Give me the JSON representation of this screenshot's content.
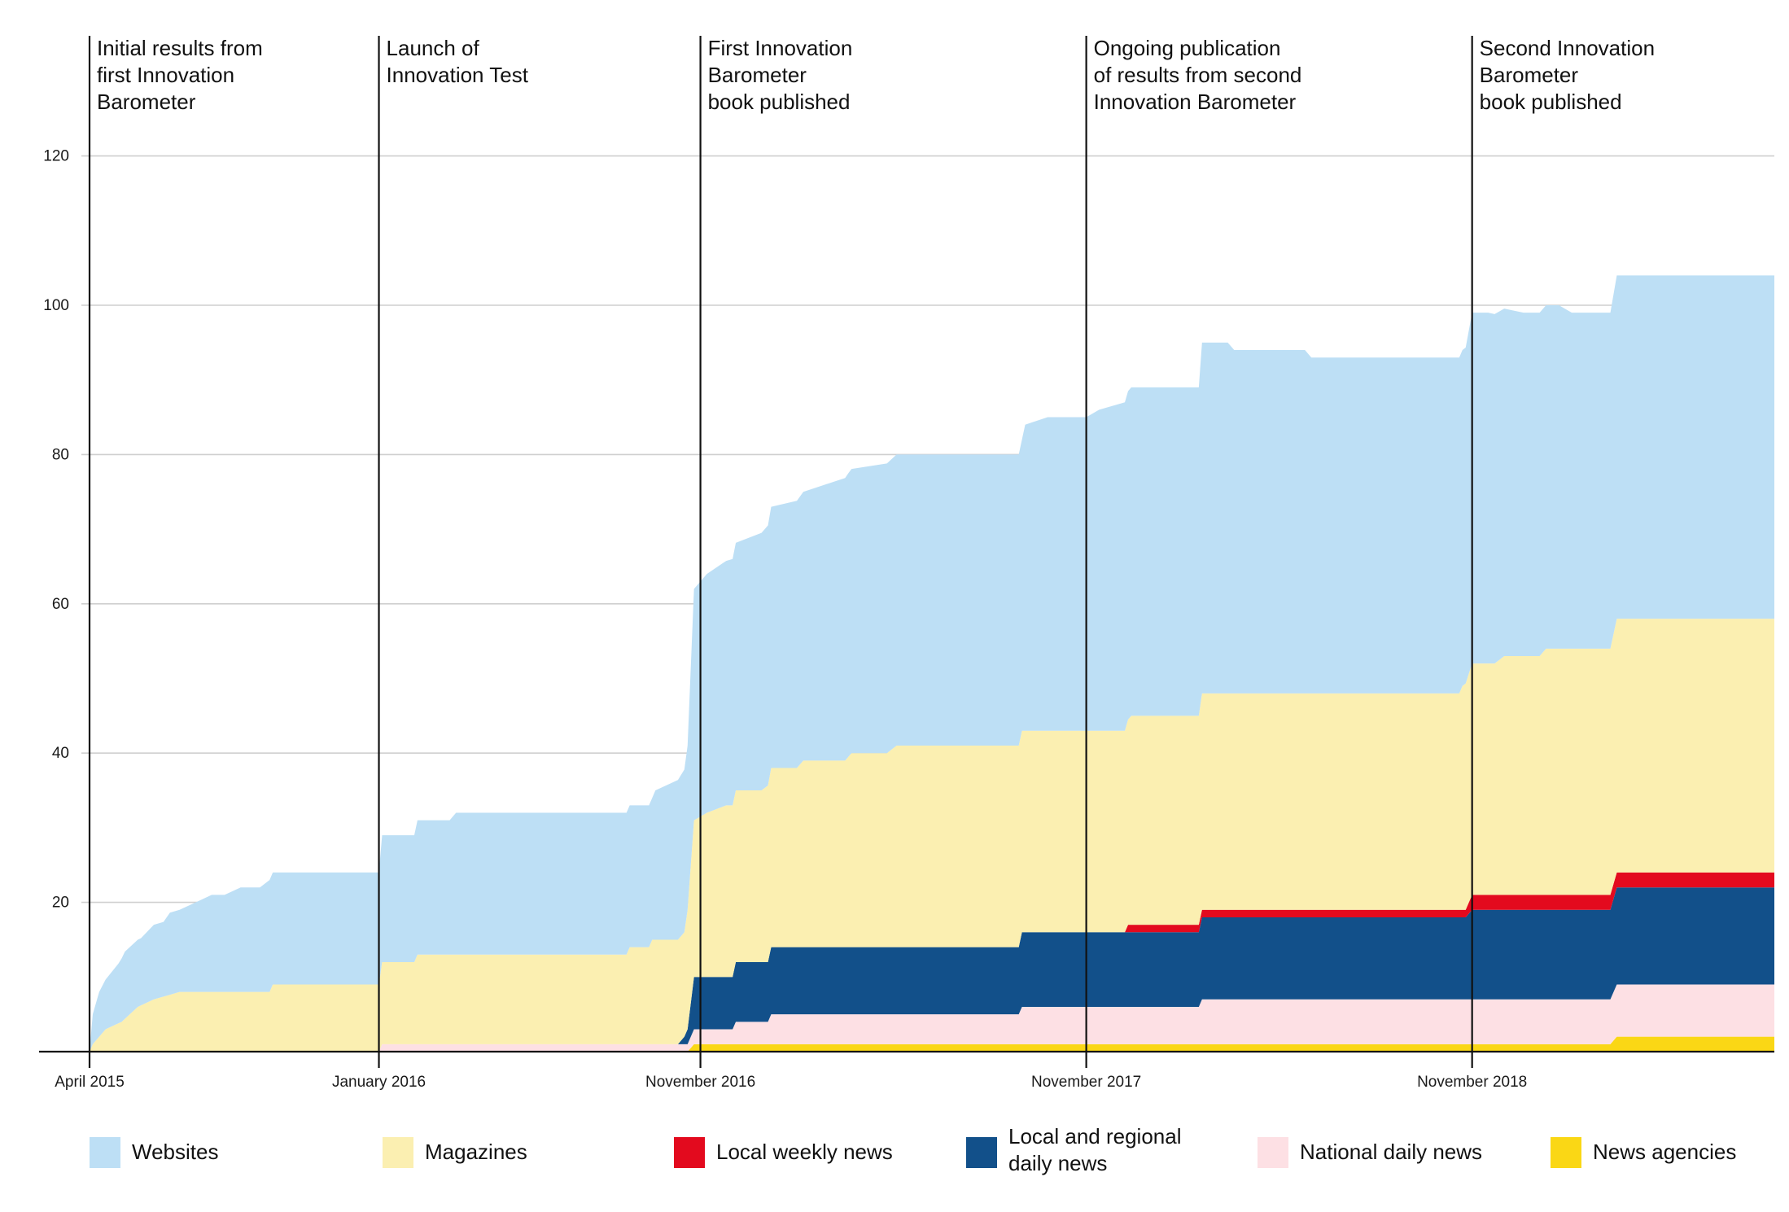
{
  "colors": {
    "websites": "#bddff5",
    "magazines": "#fbefb1",
    "local_weekly": "#e30a1e",
    "local_regional": "#12508a",
    "national_daily": "#fde0e4",
    "news_agencies": "#fad715"
  },
  "chart_data": {
    "type": "area",
    "stacked": true,
    "title": "",
    "xlabel": "",
    "ylabel": "",
    "x_unit": "months since April 2015",
    "xlim": [
      0,
      52.4
    ],
    "ylim": [
      0,
      125
    ],
    "yticks": [
      20,
      40,
      60,
      80,
      100,
      120
    ],
    "grid": true,
    "x_ticks": [
      {
        "x": 0,
        "label": "April 2015"
      },
      {
        "x": 9,
        "label": "January 2016"
      },
      {
        "x": 19,
        "label": "November 2016"
      },
      {
        "x": 31,
        "label": "November 2017"
      },
      {
        "x": 43,
        "label": "November 2018"
      }
    ],
    "annotations": [
      {
        "x": 0,
        "lines": [
          "Initial results from",
          "first Innovation",
          "Barometer"
        ]
      },
      {
        "x": 9,
        "lines": [
          "Launch of",
          "Innovation Test"
        ]
      },
      {
        "x": 19,
        "lines": [
          "First Innovation",
          "Barometer",
          "book published"
        ]
      },
      {
        "x": 31,
        "lines": [
          "Ongoing publication",
          "of results from second",
          "Innovation Barometer"
        ]
      },
      {
        "x": 43,
        "lines": [
          "Second Innovation",
          "Barometer",
          "book published"
        ]
      }
    ],
    "legend_position": "bottom",
    "series": [
      {
        "name": "News agencies",
        "color_key": "news_agencies",
        "points": [
          [
            0,
            0
          ],
          [
            18.6,
            0
          ],
          [
            18.8,
            1
          ],
          [
            47.3,
            1
          ],
          [
            47.5,
            2
          ],
          [
            52.4,
            2
          ]
        ]
      },
      {
        "name": "National daily news",
        "color_key": "national_daily",
        "points": [
          [
            0,
            0
          ],
          [
            9,
            0
          ],
          [
            9.1,
            1
          ],
          [
            18.6,
            1
          ],
          [
            18.8,
            2
          ],
          [
            20,
            2
          ],
          [
            20.1,
            3
          ],
          [
            21.1,
            3
          ],
          [
            21.2,
            4
          ],
          [
            28.9,
            4
          ],
          [
            29,
            5
          ],
          [
            34.5,
            5
          ],
          [
            34.6,
            6
          ],
          [
            47.3,
            6
          ],
          [
            47.5,
            7
          ],
          [
            52.4,
            7
          ]
        ]
      },
      {
        "name": "Local and regional daily news",
        "color_key": "local_regional",
        "points": [
          [
            0,
            0
          ],
          [
            18.3,
            0
          ],
          [
            18.5,
            1
          ],
          [
            18.6,
            2
          ],
          [
            18.8,
            7
          ],
          [
            20,
            7
          ],
          [
            20.1,
            8
          ],
          [
            21.1,
            8
          ],
          [
            21.2,
            9
          ],
          [
            28.9,
            9
          ],
          [
            29,
            10
          ],
          [
            34.5,
            10
          ],
          [
            34.6,
            11
          ],
          [
            42.8,
            11
          ],
          [
            43,
            12
          ],
          [
            47.3,
            12
          ],
          [
            47.5,
            13
          ],
          [
            52.4,
            13
          ]
        ]
      },
      {
        "name": "Local weekly news",
        "color_key": "local_weekly",
        "points": [
          [
            0,
            0
          ],
          [
            32.2,
            0
          ],
          [
            32.3,
            1
          ],
          [
            42.8,
            1
          ],
          [
            43,
            2
          ],
          [
            52.4,
            2
          ]
        ]
      },
      {
        "name": "Magazines",
        "color_key": "magazines",
        "points": [
          [
            0,
            0
          ],
          [
            0.1,
            1
          ],
          [
            0.3,
            2
          ],
          [
            0.5,
            3
          ],
          [
            1,
            4
          ],
          [
            1.5,
            6
          ],
          [
            2,
            7
          ],
          [
            2.8,
            8
          ],
          [
            5.6,
            8
          ],
          [
            5.7,
            9
          ],
          [
            9,
            9
          ],
          [
            9.1,
            11
          ],
          [
            10.1,
            11
          ],
          [
            10.2,
            12
          ],
          [
            16.7,
            12
          ],
          [
            16.8,
            13
          ],
          [
            17.4,
            13
          ],
          [
            17.5,
            14
          ],
          [
            18.5,
            14
          ],
          [
            18.6,
            16
          ],
          [
            18.8,
            21
          ],
          [
            19.2,
            22
          ],
          [
            19.8,
            23
          ],
          [
            20.9,
            23
          ],
          [
            21.2,
            24
          ],
          [
            22,
            24
          ],
          [
            22.2,
            25
          ],
          [
            23.5,
            25
          ],
          [
            23.7,
            26
          ],
          [
            24.8,
            26
          ],
          [
            25.1,
            27
          ],
          [
            32.2,
            27
          ],
          [
            32.4,
            28
          ],
          [
            34.5,
            28
          ],
          [
            34.6,
            29
          ],
          [
            42.6,
            29
          ],
          [
            42.7,
            30
          ],
          [
            43,
            31
          ],
          [
            43.7,
            31
          ],
          [
            44,
            32
          ],
          [
            45.1,
            32
          ],
          [
            45.3,
            33
          ],
          [
            47.3,
            33
          ],
          [
            47.5,
            34
          ],
          [
            52.4,
            34
          ]
        ]
      },
      {
        "name": "Websites",
        "color_key": "websites",
        "points": [
          [
            0,
            0
          ],
          [
            0.1,
            4
          ],
          [
            0.3,
            6
          ],
          [
            0.6,
            7
          ],
          [
            0.9,
            8
          ],
          [
            1.1,
            9
          ],
          [
            1.6,
            9
          ],
          [
            2,
            10
          ],
          [
            2.3,
            10
          ],
          [
            2.5,
            11
          ],
          [
            2.8,
            11
          ],
          [
            3.3,
            12
          ],
          [
            3.8,
            13
          ],
          [
            4.2,
            13
          ],
          [
            4.7,
            14
          ],
          [
            5.3,
            14
          ],
          [
            5.6,
            15
          ],
          [
            5.7,
            15
          ],
          [
            9,
            15
          ],
          [
            9.1,
            17
          ],
          [
            10.1,
            17
          ],
          [
            10.2,
            18
          ],
          [
            11.2,
            18
          ],
          [
            11.4,
            19
          ],
          [
            17.5,
            19
          ],
          [
            17.6,
            20
          ],
          [
            18.6,
            22
          ],
          [
            18.8,
            31
          ],
          [
            19.2,
            32
          ],
          [
            20,
            33
          ],
          [
            21.2,
            35
          ],
          [
            22.2,
            36
          ],
          [
            23.6,
            38
          ],
          [
            25.1,
            39
          ],
          [
            29,
            39
          ],
          [
            29.1,
            41
          ],
          [
            29.8,
            42
          ],
          [
            31,
            42
          ],
          [
            31.4,
            43
          ],
          [
            32.2,
            44
          ],
          [
            34.5,
            44
          ],
          [
            34.6,
            47
          ],
          [
            35.4,
            47
          ],
          [
            35.6,
            46
          ],
          [
            37.8,
            46
          ],
          [
            38,
            45
          ],
          [
            42.8,
            45
          ],
          [
            43,
            47
          ],
          [
            43.5,
            47
          ],
          [
            44.6,
            46
          ],
          [
            45.7,
            46
          ],
          [
            46.1,
            45
          ],
          [
            47.3,
            45
          ],
          [
            47.5,
            46
          ],
          [
            48.2,
            46
          ],
          [
            48.5,
            46
          ],
          [
            52.4,
            46
          ]
        ]
      }
    ]
  }
}
